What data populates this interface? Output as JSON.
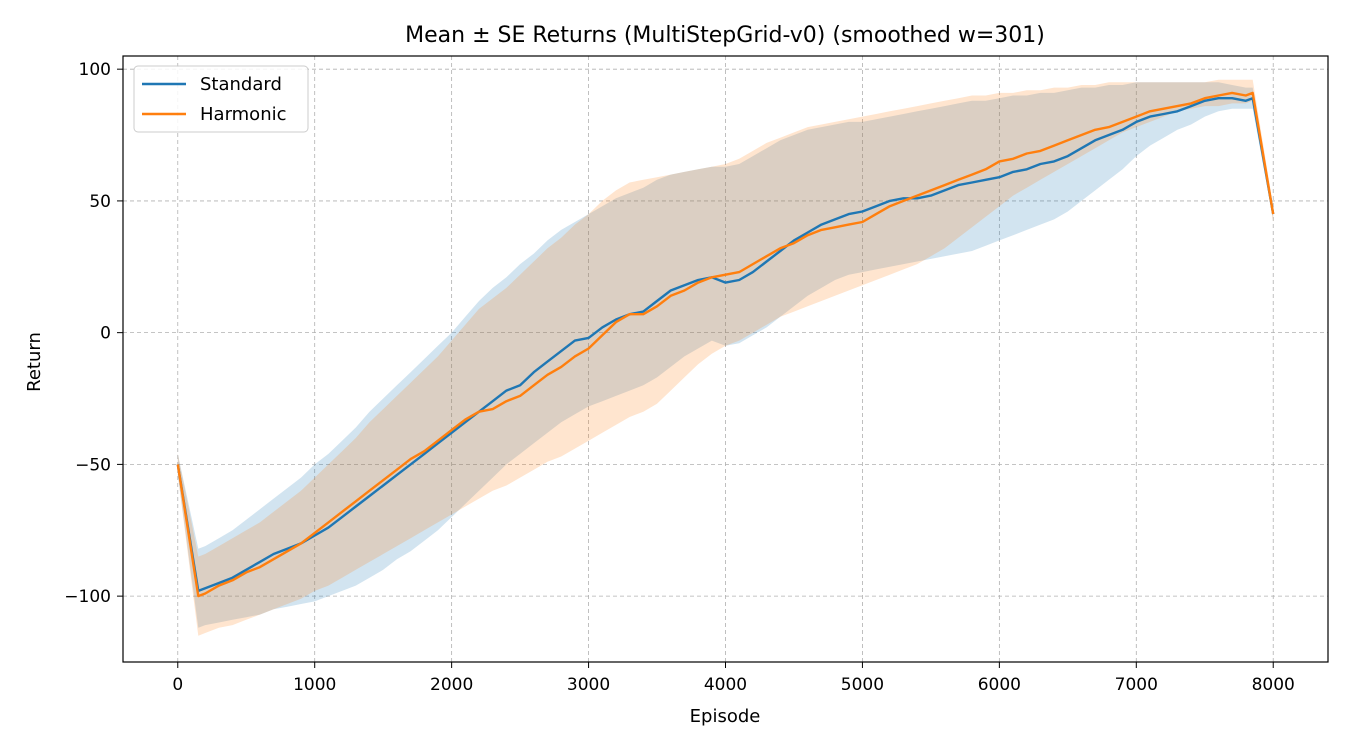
{
  "chart_data": {
    "type": "line",
    "title": "Mean ± SE Returns (MultiStepGrid-v0) (smoothed w=301)",
    "xlabel": "Episode",
    "ylabel": "Return",
    "xlim": [
      -400,
      8400
    ],
    "ylim": [
      -125,
      105
    ],
    "xticks": [
      0,
      1000,
      2000,
      3000,
      4000,
      5000,
      6000,
      7000,
      8000
    ],
    "xtick_labels": [
      "0",
      "1000",
      "2000",
      "3000",
      "4000",
      "5000",
      "6000",
      "7000",
      "8000"
    ],
    "yticks": [
      -100,
      -50,
      0,
      50,
      100
    ],
    "ytick_labels": [
      "−100",
      "−50",
      "0",
      "50",
      "100"
    ],
    "grid": true,
    "legend_position": "top-left",
    "series": [
      {
        "name": "Standard",
        "color": "#1f77b4",
        "x": [
          0,
          150,
          200,
          300,
          400,
          500,
          600,
          700,
          800,
          900,
          1000,
          1100,
          1200,
          1300,
          1400,
          1500,
          1600,
          1700,
          1800,
          1900,
          2000,
          2100,
          2200,
          2300,
          2400,
          2500,
          2600,
          2700,
          2800,
          2900,
          3000,
          3100,
          3200,
          3300,
          3400,
          3500,
          3600,
          3700,
          3800,
          3900,
          4000,
          4100,
          4200,
          4300,
          4400,
          4500,
          4600,
          4700,
          4800,
          4900,
          5000,
          5100,
          5200,
          5300,
          5400,
          5500,
          5600,
          5700,
          5800,
          5900,
          6000,
          6100,
          6200,
          6300,
          6400,
          6500,
          6600,
          6700,
          6800,
          6900,
          7000,
          7100,
          7200,
          7300,
          7400,
          7500,
          7600,
          7700,
          7800,
          7850,
          8000
        ],
        "y": [
          -50,
          -98,
          -97,
          -95,
          -93,
          -90,
          -87,
          -84,
          -82,
          -80,
          -77,
          -74,
          -70,
          -66,
          -62,
          -58,
          -54,
          -50,
          -46,
          -42,
          -38,
          -34,
          -30,
          -26,
          -22,
          -20,
          -15,
          -11,
          -7,
          -3,
          -2,
          2,
          5,
          7,
          8,
          12,
          16,
          18,
          20,
          21,
          19,
          20,
          23,
          27,
          31,
          35,
          38,
          41,
          43,
          45,
          46,
          48,
          50,
          51,
          51,
          52,
          54,
          56,
          57,
          58,
          59,
          61,
          62,
          64,
          65,
          67,
          70,
          73,
          75,
          77,
          80,
          82,
          83,
          84,
          86,
          88,
          89,
          89,
          88,
          89,
          45
        ],
        "upper": [
          -46,
          -82,
          -81,
          -78,
          -75,
          -71,
          -67,
          -63,
          -59,
          -55,
          -50,
          -46,
          -41,
          -36,
          -30,
          -25,
          -20,
          -15,
          -10,
          -5,
          0,
          6,
          12,
          17,
          21,
          26,
          30,
          35,
          39,
          42,
          45,
          48,
          51,
          53,
          55,
          58,
          60,
          61,
          62,
          63,
          63,
          64,
          67,
          70,
          73,
          75,
          77,
          78,
          79,
          80,
          80,
          81,
          82,
          83,
          84,
          85,
          86,
          87,
          88,
          88,
          89,
          90,
          90,
          91,
          91,
          92,
          93,
          93,
          94,
          94,
          95,
          95,
          95,
          95,
          95,
          95,
          95,
          94,
          93,
          93,
          47
        ],
        "lower": [
          -54,
          -112,
          -111,
          -110,
          -109,
          -108,
          -107,
          -105,
          -104,
          -103,
          -102,
          -100,
          -98,
          -96,
          -93,
          -90,
          -86,
          -83,
          -79,
          -75,
          -70,
          -65,
          -60,
          -55,
          -50,
          -46,
          -42,
          -38,
          -34,
          -31,
          -28,
          -26,
          -24,
          -22,
          -20,
          -17,
          -13,
          -9,
          -6,
          -3,
          -5,
          -4,
          -1,
          2,
          6,
          10,
          14,
          17,
          20,
          22,
          23,
          24,
          25,
          26,
          27,
          28,
          29,
          30,
          31,
          33,
          35,
          37,
          39,
          41,
          43,
          46,
          50,
          54,
          58,
          62,
          67,
          71,
          74,
          77,
          79,
          82,
          84,
          85,
          85,
          85,
          43
        ]
      },
      {
        "name": "Harmonic",
        "color": "#ff7f0e",
        "x": [
          0,
          150,
          200,
          300,
          400,
          500,
          600,
          700,
          800,
          900,
          1000,
          1100,
          1200,
          1300,
          1400,
          1500,
          1600,
          1700,
          1800,
          1900,
          2000,
          2100,
          2200,
          2300,
          2400,
          2500,
          2600,
          2700,
          2800,
          2900,
          3000,
          3100,
          3200,
          3300,
          3400,
          3500,
          3600,
          3700,
          3800,
          3900,
          4000,
          4100,
          4200,
          4300,
          4400,
          4500,
          4600,
          4700,
          4800,
          4900,
          5000,
          5100,
          5200,
          5300,
          5400,
          5500,
          5600,
          5700,
          5800,
          5900,
          6000,
          6100,
          6200,
          6300,
          6400,
          6500,
          6600,
          6700,
          6800,
          6900,
          7000,
          7100,
          7200,
          7300,
          7400,
          7500,
          7600,
          7700,
          7800,
          7850,
          8000
        ],
        "y": [
          -50,
          -100,
          -99,
          -96,
          -94,
          -91,
          -89,
          -86,
          -83,
          -80,
          -76,
          -72,
          -68,
          -64,
          -60,
          -56,
          -52,
          -48,
          -45,
          -41,
          -37,
          -33,
          -30,
          -29,
          -26,
          -24,
          -20,
          -16,
          -13,
          -9,
          -6,
          -1,
          4,
          7,
          7,
          10,
          14,
          16,
          19,
          21,
          22,
          23,
          26,
          29,
          32,
          34,
          37,
          39,
          40,
          41,
          42,
          45,
          48,
          50,
          52,
          54,
          56,
          58,
          60,
          62,
          65,
          66,
          68,
          69,
          71,
          73,
          75,
          77,
          78,
          80,
          82,
          84,
          85,
          86,
          87,
          89,
          90,
          91,
          90,
          91,
          45
        ],
        "upper": [
          -46,
          -85,
          -84,
          -81,
          -78,
          -75,
          -72,
          -68,
          -64,
          -60,
          -55,
          -50,
          -45,
          -40,
          -34,
          -29,
          -24,
          -19,
          -14,
          -9,
          -3,
          3,
          9,
          13,
          17,
          22,
          27,
          32,
          36,
          41,
          45,
          50,
          54,
          57,
          58,
          59,
          60,
          61,
          62,
          63,
          64,
          66,
          69,
          72,
          74,
          76,
          78,
          79,
          80,
          81,
          82,
          83,
          84,
          85,
          86,
          87,
          88,
          89,
          90,
          90,
          91,
          91,
          92,
          92,
          93,
          93,
          94,
          94,
          95,
          95,
          95,
          95,
          95,
          95,
          95,
          95,
          96,
          96,
          96,
          96,
          48
        ],
        "lower": [
          -54,
          -115,
          -114,
          -112,
          -111,
          -109,
          -107,
          -105,
          -103,
          -101,
          -98,
          -96,
          -93,
          -90,
          -87,
          -84,
          -81,
          -78,
          -75,
          -72,
          -69,
          -66,
          -63,
          -60,
          -58,
          -55,
          -52,
          -49,
          -47,
          -44,
          -41,
          -38,
          -35,
          -32,
          -30,
          -27,
          -22,
          -17,
          -12,
          -8,
          -5,
          -3,
          0,
          3,
          6,
          8,
          10,
          12,
          14,
          16,
          18,
          20,
          22,
          24,
          26,
          29,
          32,
          36,
          40,
          44,
          48,
          52,
          55,
          58,
          61,
          64,
          67,
          70,
          73,
          76,
          78,
          80,
          82,
          84,
          85,
          86,
          86,
          87,
          87,
          88,
          42
        ]
      }
    ]
  }
}
